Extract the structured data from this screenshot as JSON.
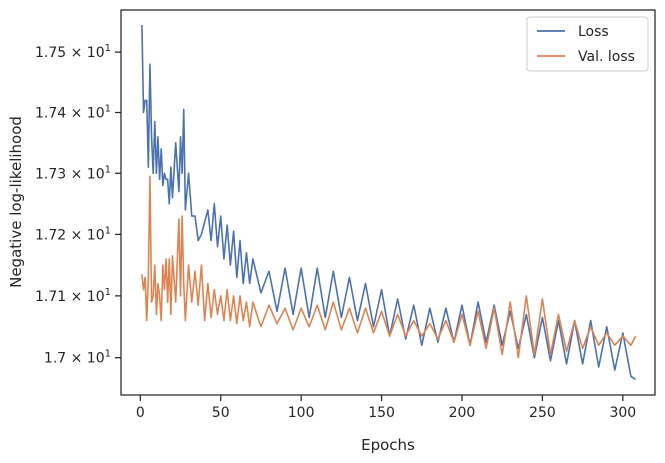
{
  "chart_data": {
    "type": "line",
    "xlabel": "Epochs",
    "ylabel": "Negative log-likelihood",
    "xlim": [
      -12,
      320
    ],
    "ylim": [
      16.94,
      17.57
    ],
    "yscale": "log",
    "grid": false,
    "legend_position": "top-right",
    "x_ticks": [
      0,
      50,
      100,
      150,
      200,
      250,
      300
    ],
    "x_tick_labels": [
      "0",
      "50",
      "100",
      "150",
      "200",
      "250",
      "300"
    ],
    "y_ticks": [
      {
        "value": 17.0,
        "mantissa": "1.7",
        "base": "10",
        "exp": "1"
      },
      {
        "value": 17.1,
        "mantissa": "1.71",
        "base": "10",
        "exp": "1"
      },
      {
        "value": 17.2,
        "mantissa": "1.72",
        "base": "10",
        "exp": "1"
      },
      {
        "value": 17.3,
        "mantissa": "1.73",
        "base": "10",
        "exp": "1"
      },
      {
        "value": 17.4,
        "mantissa": "1.74",
        "base": "10",
        "exp": "1"
      },
      {
        "value": 17.5,
        "mantissa": "1.75",
        "base": "10",
        "exp": "1"
      }
    ],
    "times_symbol": "×",
    "series": [
      {
        "name": "Loss",
        "color": "#4c72b0",
        "x": [
          1,
          2,
          3,
          4,
          5,
          6,
          7,
          8,
          9,
          10,
          11,
          12,
          13,
          14,
          15,
          16,
          17,
          18,
          19,
          20,
          22,
          24,
          25,
          26,
          27,
          28,
          30,
          32,
          34,
          36,
          38,
          40,
          42,
          44,
          46,
          48,
          50,
          52,
          54,
          56,
          58,
          60,
          62,
          64,
          66,
          68,
          70,
          75,
          80,
          85,
          90,
          95,
          100,
          105,
          110,
          115,
          120,
          125,
          130,
          135,
          140,
          145,
          150,
          155,
          160,
          165,
          170,
          175,
          180,
          185,
          190,
          195,
          200,
          205,
          210,
          215,
          220,
          225,
          230,
          235,
          240,
          245,
          250,
          255,
          260,
          265,
          270,
          275,
          280,
          285,
          290,
          295,
          300,
          305,
          308
        ],
        "y": [
          17.545,
          17.4,
          17.42,
          17.42,
          17.31,
          17.48,
          17.36,
          17.3,
          17.385,
          17.3,
          17.36,
          17.29,
          17.34,
          17.28,
          17.3,
          17.29,
          17.29,
          17.25,
          17.31,
          17.26,
          17.35,
          17.27,
          17.36,
          17.3,
          17.405,
          17.24,
          17.3,
          17.23,
          17.23,
          17.19,
          17.2,
          17.22,
          17.24,
          17.19,
          17.25,
          17.18,
          17.23,
          17.16,
          17.215,
          17.15,
          17.205,
          17.13,
          17.19,
          17.12,
          17.17,
          17.12,
          17.16,
          17.105,
          17.14,
          17.075,
          17.145,
          17.07,
          17.145,
          17.065,
          17.145,
          17.065,
          17.14,
          17.065,
          17.13,
          17.06,
          17.12,
          17.05,
          17.11,
          17.035,
          17.095,
          17.03,
          17.085,
          17.02,
          17.08,
          17.025,
          17.08,
          17.025,
          17.085,
          17.02,
          17.09,
          17.025,
          17.085,
          17.02,
          17.075,
          17.015,
          17.07,
          17.0,
          17.065,
          16.995,
          17.06,
          16.99,
          17.06,
          16.99,
          17.06,
          16.985,
          17.05,
          16.98,
          17.04,
          16.97,
          16.965
        ]
      },
      {
        "name": "Val. loss",
        "color": "#dd8452",
        "x": [
          1,
          2,
          3,
          4,
          5,
          6,
          7,
          8,
          9,
          10,
          11,
          12,
          13,
          14,
          15,
          16,
          17,
          18,
          19,
          20,
          22,
          24,
          25,
          26,
          27,
          28,
          30,
          32,
          34,
          36,
          38,
          40,
          42,
          44,
          46,
          48,
          50,
          52,
          54,
          56,
          58,
          60,
          62,
          64,
          66,
          68,
          70,
          75,
          80,
          85,
          90,
          95,
          100,
          105,
          110,
          115,
          120,
          125,
          130,
          135,
          140,
          145,
          150,
          155,
          160,
          165,
          170,
          175,
          180,
          185,
          190,
          195,
          200,
          205,
          210,
          215,
          220,
          225,
          230,
          235,
          240,
          245,
          250,
          255,
          260,
          265,
          270,
          275,
          280,
          285,
          290,
          295,
          300,
          305,
          308
        ],
        "y": [
          17.135,
          17.11,
          17.13,
          17.06,
          17.13,
          17.295,
          17.09,
          17.1,
          17.15,
          17.07,
          17.12,
          17.1,
          17.06,
          17.15,
          17.11,
          17.16,
          17.09,
          17.16,
          17.07,
          17.165,
          17.09,
          17.225,
          17.1,
          17.23,
          17.12,
          17.06,
          17.15,
          17.09,
          17.14,
          17.085,
          17.15,
          17.06,
          17.12,
          17.065,
          17.11,
          17.07,
          17.1,
          17.06,
          17.11,
          17.06,
          17.1,
          17.055,
          17.1,
          17.06,
          17.09,
          17.05,
          17.09,
          17.05,
          17.085,
          17.055,
          17.08,
          17.045,
          17.08,
          17.05,
          17.085,
          17.045,
          17.09,
          17.045,
          17.08,
          17.04,
          17.08,
          17.04,
          17.075,
          17.035,
          17.07,
          17.035,
          17.06,
          17.035,
          17.055,
          17.03,
          17.06,
          17.025,
          17.07,
          17.02,
          17.075,
          17.015,
          17.08,
          17.005,
          17.09,
          17.0,
          17.1,
          17.005,
          17.095,
          17.005,
          17.07,
          17.01,
          17.06,
          17.015,
          17.05,
          17.02,
          17.04,
          17.02,
          17.035,
          17.02,
          17.035
        ]
      }
    ]
  }
}
